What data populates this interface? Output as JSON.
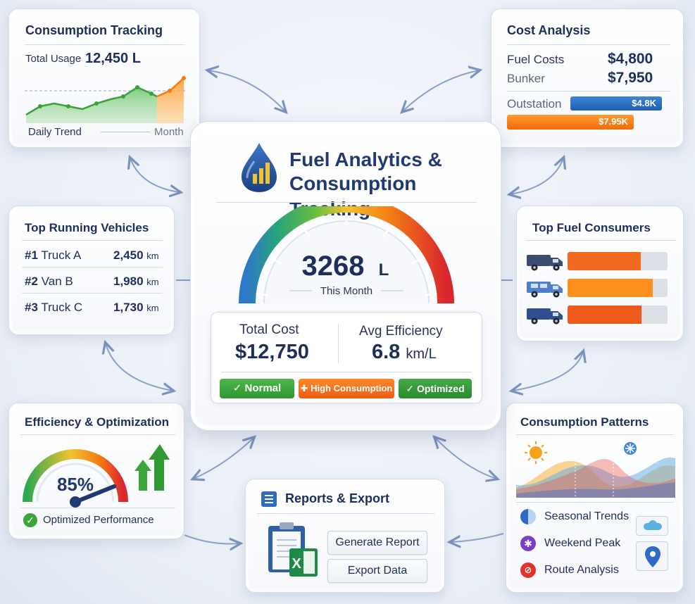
{
  "center": {
    "title_line1": "Fuel Analytics &",
    "title_line2": "Consumption Tracking",
    "gauge_value": "3268",
    "gauge_unit": "L",
    "gauge_caption": "This Month",
    "total_cost_label": "Total Cost",
    "total_cost_value": "$12,750",
    "avg_eff_label": "Avg Efficiency",
    "avg_eff_value": "6.8",
    "avg_eff_unit": "km/L",
    "badges": [
      "✓ Normal",
      "✚ High Consumption",
      "✓ Optimized"
    ]
  },
  "consumption_tracking": {
    "title": "Consumption Tracking",
    "total_label": "Total Usage",
    "total_value": "12,450 L",
    "left_caption": "Daily Trend",
    "right_caption": "Month"
  },
  "cost_analysis": {
    "title": "Cost Analysis",
    "fuel_label": "Fuel Costs",
    "fuel_value": "$4,800",
    "bunker_label": "Bunker",
    "bunker_value": "$7,950",
    "outstation_label": "Outstation",
    "bar1_label": "$4.8K",
    "bar2_label": "$7.95K"
  },
  "top_vehicles": {
    "title": "Top Running Vehicles",
    "rows": [
      {
        "rank": "#1",
        "name": "Truck A",
        "km": "2,450",
        "unit": "km"
      },
      {
        "rank": "#2",
        "name": "Van B",
        "km": "1,980",
        "unit": "km"
      },
      {
        "rank": "#3",
        "name": "Truck C",
        "km": "1,730",
        "unit": "km"
      }
    ]
  },
  "top_consumers": {
    "title": "Top Fuel Consumers",
    "bars": [
      0.73,
      0.85,
      0.74
    ],
    "colors": [
      "#f26a1f",
      "#ff9020",
      "#ee5a1c"
    ]
  },
  "efficiency": {
    "title": "Efficiency & Optimization",
    "value": "85%",
    "level": 0.85,
    "status": "Optimized Performance"
  },
  "reports": {
    "title": "Reports & Export",
    "generate_label": "Generate Report",
    "export_label": "Export Data"
  },
  "patterns": {
    "title": "Consumption Patterns",
    "items": [
      "Seasonal Trends",
      "Weekend Peak",
      "Route Analysis"
    ]
  },
  "icons": {
    "fuel_drop": "fuel-drop-icon",
    "truck": "truck-icon",
    "van": "van-icon",
    "check": "check-icon",
    "clipboard": "clipboard-icon",
    "excel": "excel-icon",
    "sun": "sun-icon",
    "snowflake": "snowflake-icon",
    "cloud": "cloud-icon",
    "map_pin": "map-pin-icon"
  }
}
